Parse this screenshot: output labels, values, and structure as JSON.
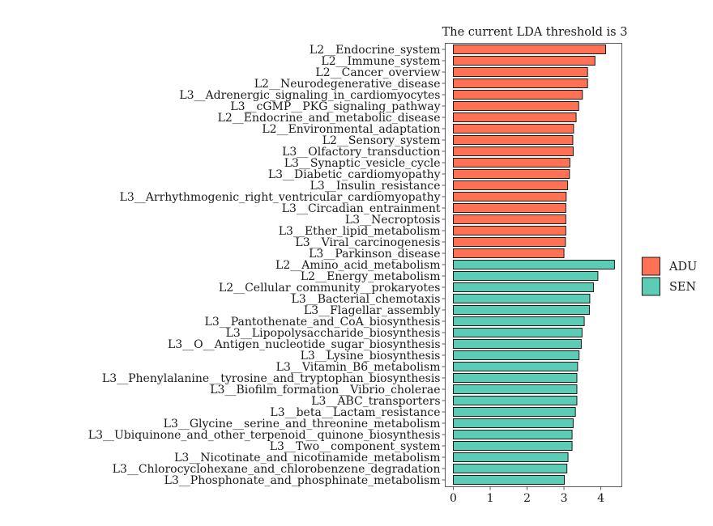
{
  "chart_data": {
    "type": "bar",
    "orientation": "horizontal",
    "title": "The current LDA threshold is 3",
    "xlabel": "",
    "ylabel": "",
    "xlim": [
      -0.22,
      4.57
    ],
    "xticks": [
      0,
      1,
      2,
      3,
      4
    ],
    "grid": false,
    "legend_position": "right",
    "groups": [
      {
        "name": "ADU",
        "color": "#FF7256"
      },
      {
        "name": "SEN",
        "color": "#5CCDB4"
      }
    ],
    "categories": [
      "L2__Endocrine_system",
      "L2__Immune_system",
      "L2__Cancer_overview",
      "L2__Neurodegenerative_disease",
      "L3__Adrenergic_signaling_in_cardiomyocytes",
      "L3__cGMP__PKG_signaling_pathway",
      "L2__Endocrine_and_metabolic_disease",
      "L2__Environmental_adaptation",
      "L2__Sensory_system",
      "L3__Olfactory_transduction",
      "L3__Synaptic_vesicle_cycle",
      "L3__Diabetic_cardiomyopathy",
      "L3__Insulin_resistance",
      "L3__Arrhythmogenic_right_ventricular_cardiomyopathy",
      "L3__Circadian_entrainment",
      "L3__Necroptosis",
      "L3__Ether_lipid_metabolism",
      "L3__Viral_carcinogenesis",
      "L3__Parkinson_disease",
      "L2__Amino_acid_metabolism",
      "L2__Energy_metabolism",
      "L2__Cellular_community__prokaryotes",
      "L3__Bacterial_chemotaxis",
      "L3__Flagellar_assembly",
      "L3__Pantothenate_and_CoA_biosynthesis",
      "L3__Lipopolysaccharide_biosynthesis",
      "L3__O__Antigen_nucleotide_sugar_biosynthesis",
      "L3__Lysine_biosynthesis",
      "L3__Vitamin_B6_metabolism",
      "L3__Phenylalanine__tyrosine_and_tryptophan_biosynthesis",
      "L3__Biofilm_formation__Vibrio_cholerae",
      "L3__ABC_transporters",
      "L3__beta__Lactam_resistance",
      "L3__Glycine__serine_and_threonine_metabolism",
      "L3__Ubiquinone_and_other_terpenoid__quinone_biosynthesis",
      "L3__Two__component_system",
      "L3__Nicotinate_and_nicotinamide_metabolism",
      "L3__Chlorocyclohexane_and_chlorobenzene_degradation",
      "L3__Phosphonate_and_phosphinate_metabolism"
    ],
    "values": [
      4.13,
      3.84,
      3.64,
      3.64,
      3.5,
      3.4,
      3.33,
      3.26,
      3.24,
      3.25,
      3.16,
      3.15,
      3.1,
      3.06,
      3.05,
      3.05,
      3.05,
      3.04,
      3.0,
      4.37,
      3.92,
      3.8,
      3.7,
      3.69,
      3.55,
      3.49,
      3.47,
      3.41,
      3.37,
      3.35,
      3.35,
      3.35,
      3.31,
      3.25,
      3.22,
      3.22,
      3.11,
      3.08,
      3.01
    ],
    "group_index": [
      0,
      0,
      0,
      0,
      0,
      0,
      0,
      0,
      0,
      0,
      0,
      0,
      0,
      0,
      0,
      0,
      0,
      0,
      0,
      1,
      1,
      1,
      1,
      1,
      1,
      1,
      1,
      1,
      1,
      1,
      1,
      1,
      1,
      1,
      1,
      1,
      1,
      1,
      1
    ]
  }
}
